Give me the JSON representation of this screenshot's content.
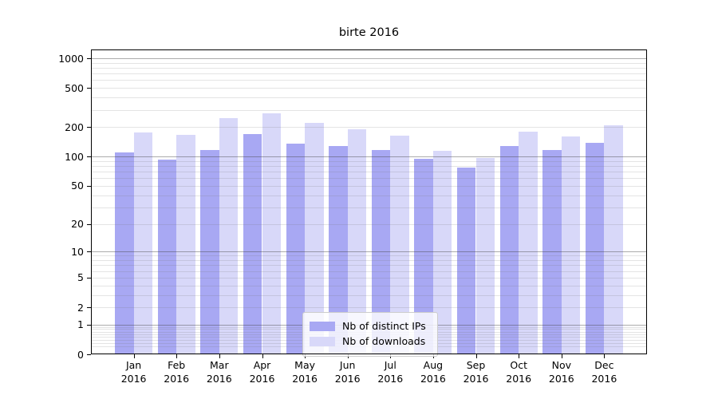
{
  "figure": {
    "title": "birte 2016"
  },
  "chart_data": {
    "type": "bar",
    "title": "birte 2016",
    "categories": [
      "Jan 2016",
      "Feb 2016",
      "Mar 2016",
      "Apr 2016",
      "May 2016",
      "Jun 2016",
      "Jul 2016",
      "Aug 2016",
      "Sep 2016",
      "Oct 2016",
      "Nov 2016",
      "Dec 2016"
    ],
    "series": [
      {
        "name": "Nb of distinct IPs",
        "color": "#a8a8f3",
        "values": [
          111,
          94,
          117,
          171,
          135,
          127,
          117,
          95,
          77,
          127,
          116,
          137
        ]
      },
      {
        "name": "Nb of downloads",
        "color": "#d8d8f9",
        "values": [
          175,
          168,
          245,
          276,
          220,
          189,
          163,
          114,
          96,
          180,
          162,
          207
        ]
      }
    ],
    "xlabel": "",
    "ylabel": "",
    "yscale": "log1p",
    "yticks": [
      0,
      1,
      2,
      5,
      10,
      20,
      50,
      100,
      200,
      500,
      1000
    ],
    "major_grid_values": [
      1,
      10,
      100,
      1000
    ],
    "ylim": [
      0,
      1225
    ],
    "grid": "both",
    "legend_position": "lower center",
    "colors": {
      "background": "#ffffff",
      "axis": "#000000",
      "major_grid": "#b0b0b0",
      "minor_grid": "#e4e4e4"
    }
  }
}
